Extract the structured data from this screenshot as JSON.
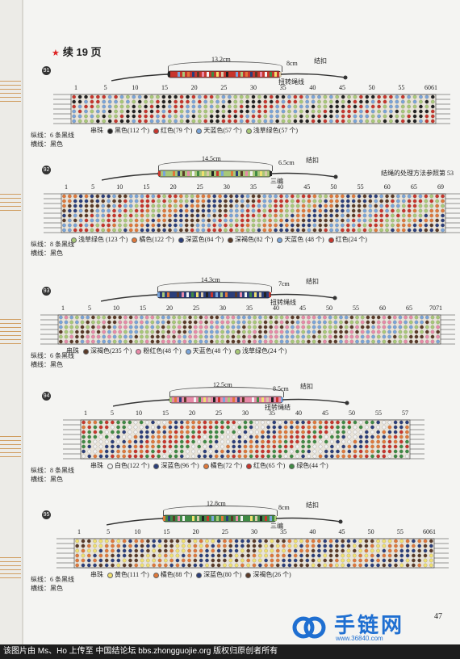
{
  "page_title": "续 19 页",
  "page_number": "47",
  "header_watermark": "手链网",
  "logo": {
    "name": "手链网",
    "url": "www.36840.com"
  },
  "footer_text": "该图片由 Ms、Ho 上传至 中国结论坛 bbs.zhongguojie.org 版权归原创者所有",
  "colors": {
    "accent": "#d22222",
    "logo_blue": "#1f6fd1"
  },
  "patterns": [
    {
      "id": "91",
      "length": "13.2cm",
      "tail_length": "8cm",
      "end_label": "结扣",
      "tail_label": "扭转绳线",
      "ticks": [
        "1",
        "5",
        "10",
        "15",
        "20",
        "25",
        "30",
        "35",
        "40",
        "45",
        "50",
        "55",
        "6061"
      ],
      "cord_count": "纵线：6 条黑线",
      "weft": "横线：黑色",
      "legend_title": "串珠",
      "legend": [
        {
          "label": "黑色(112 个)",
          "color": "#222222"
        },
        {
          "label": "红色(79 个)",
          "color": "#c8352c"
        },
        {
          "label": "天蓝色(57 个)",
          "color": "#7aa4d8"
        },
        {
          "label": "浅草绿色(57 个)",
          "color": "#a8c878"
        }
      ]
    },
    {
      "id": "92",
      "length": "14.5cm",
      "tail_length": "6.5cm",
      "end_label": "结扣",
      "tail_label": "三编",
      "note": "结绳的处理方法参照第 53",
      "ticks": [
        "1",
        "5",
        "10",
        "15",
        "20",
        "25",
        "30",
        "35",
        "40",
        "45",
        "50",
        "55",
        "60",
        "65",
        "69"
      ],
      "cord_count": "纵线：8 条黑线",
      "weft": "横线：黑色",
      "legend": [
        {
          "label": "浅草绿色",
          "sub": "(123 个)",
          "color": "#a8c878"
        },
        {
          "label": "橘色(122 个)",
          "color": "#e0783a"
        },
        {
          "label": "深蓝色(84 个)",
          "color": "#2b3e7a"
        },
        {
          "label": "深褐色(82 个)",
          "color": "#5a3a28"
        },
        {
          "label": "天蓝色",
          "sub": "(48 个)",
          "color": "#7aa4d8"
        },
        {
          "label": "红色(24 个)",
          "color": "#c8352c"
        }
      ]
    },
    {
      "id": "93",
      "length": "14.3cm",
      "tail_length": "7cm",
      "end_label": "结扣",
      "tail_label": "扭转绳线",
      "ticks": [
        "1",
        "5",
        "10",
        "15",
        "20",
        "25",
        "30",
        "35",
        "40",
        "45",
        "50",
        "55",
        "60",
        "65",
        "7071"
      ],
      "cord_count": "纵线：6 条黑线",
      "weft": "横线：黑色",
      "legend_title": "串珠",
      "legend": [
        {
          "label": "深褐色(235 个)",
          "color": "#5a3a28"
        },
        {
          "label": "粉红色(48 个)",
          "color": "#e88aa8"
        },
        {
          "label": "天蓝色(48 个)",
          "color": "#7aa4d8"
        },
        {
          "label": "浅草绿色(24 个)",
          "color": "#a8c878"
        }
      ]
    },
    {
      "id": "94",
      "length": "12.5cm",
      "tail_length": "8.5cm",
      "end_label": "结扣",
      "tail_label": "扭转绳结",
      "ticks": [
        "1",
        "5",
        "10",
        "15",
        "20",
        "25",
        "30",
        "35",
        "40",
        "45",
        "50",
        "55",
        "57"
      ],
      "cord_count": "纵线：8 条黑线",
      "weft": "横线：黑色",
      "legend_title": "串珠",
      "legend": [
        {
          "label": "白色(122 个)",
          "color": "#f2f2f2"
        },
        {
          "label": "深蓝色(96 个)",
          "color": "#2b3e7a"
        },
        {
          "label": "橘色(72 个)",
          "color": "#e0783a"
        },
        {
          "label": "红色(65 个)",
          "color": "#c8352c"
        },
        {
          "label": "绿色(44 个)",
          "color": "#3f8a44"
        }
      ]
    },
    {
      "id": "95",
      "length": "12.8cm",
      "tail_length": "8cm",
      "end_label": "结扣",
      "tail_label": "三编",
      "ticks": [
        "1",
        "5",
        "10",
        "15",
        "20",
        "25",
        "30",
        "35",
        "40",
        "45",
        "50",
        "55",
        "6061"
      ],
      "cord_count": "纵线：6 条黑线",
      "weft": "横线：黑色",
      "legend_title": "串珠",
      "legend": [
        {
          "label": "黄色(111 个)",
          "color": "#f0e070"
        },
        {
          "label": "橘色(88 个)",
          "color": "#e0783a"
        },
        {
          "label": "深蓝色(80 个)",
          "color": "#2b3e7a"
        },
        {
          "label": "深褐色(26 个)",
          "color": "#5a3a28"
        }
      ]
    }
  ]
}
